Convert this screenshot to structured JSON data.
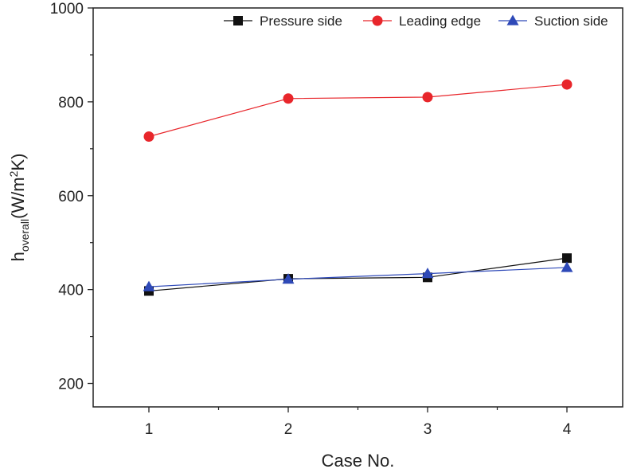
{
  "chart_data": {
    "type": "line",
    "title": "",
    "xlabel": "Case No.",
    "ylabel": {
      "base": "h",
      "subscript": "overall",
      "unit_open": "(W/m",
      "superscript": "2",
      "unit_close": "K)"
    },
    "x": [
      1,
      2,
      3,
      4
    ],
    "xlim": [
      0.6,
      4.4
    ],
    "ylim": [
      150,
      1000
    ],
    "xticks": [
      1,
      2,
      3,
      4
    ],
    "yticks": [
      200,
      400,
      600,
      800,
      1000
    ],
    "grid": false,
    "legend_position": "top-right",
    "series": [
      {
        "name": "Pressure side",
        "marker": "square",
        "color": "#111111",
        "values": [
          397,
          423,
          426,
          467
        ]
      },
      {
        "name": "Leading edge",
        "marker": "circle",
        "color": "#e8262b",
        "values": [
          726,
          807,
          810,
          837
        ]
      },
      {
        "name": "Suction side",
        "marker": "triangle",
        "color": "#2e49b8",
        "values": [
          406,
          422,
          434,
          447
        ]
      }
    ]
  }
}
